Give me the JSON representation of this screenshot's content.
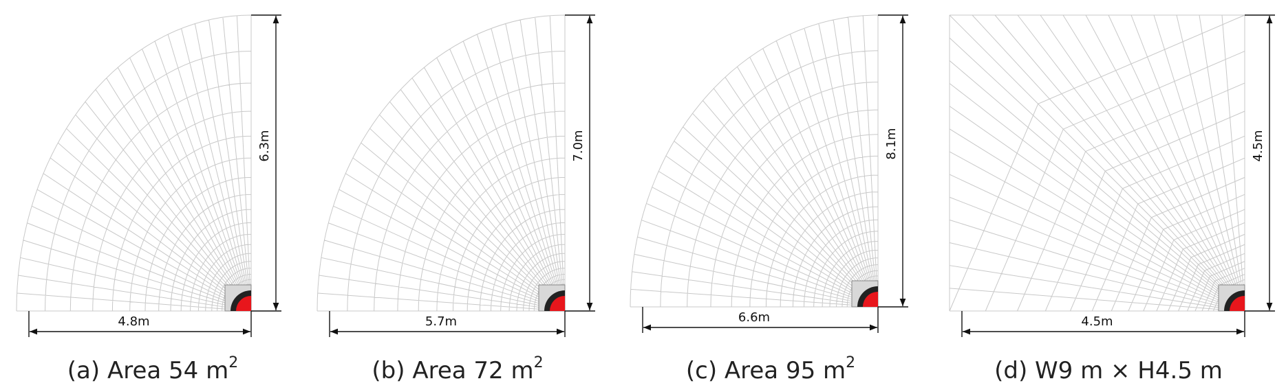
{
  "panels": [
    {
      "height_label": "6.3m",
      "width_label": "4.8m",
      "caption": "(a) Area 54 m",
      "caption_sup": "2"
    },
    {
      "height_label": "7.0m",
      "width_label": "5.7m",
      "caption": "(b) Area 72 m",
      "caption_sup": "2"
    },
    {
      "height_label": "8.1m",
      "width_label": "6.6m",
      "caption": "(c) Area 95 m",
      "caption_sup": "2"
    },
    {
      "height_label": "4.5m",
      "width_label": "4.5m",
      "caption": "(d) W9 m × H4.5 m"
    }
  ]
}
